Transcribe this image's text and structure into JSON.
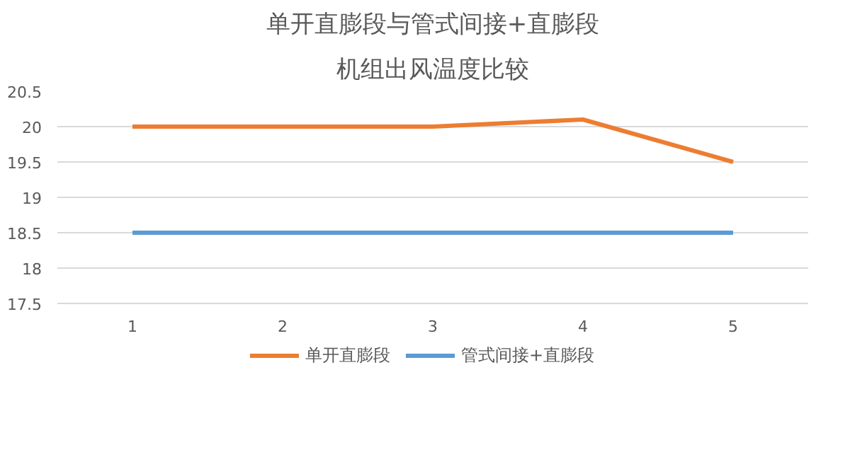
{
  "chart_data": {
    "type": "line",
    "title": "单开直膨段与管式间接+直膨段",
    "subtitle": "机组出风温度比较",
    "categories": [
      "1",
      "2",
      "3",
      "4",
      "5"
    ],
    "series": [
      {
        "name": "单开直膨段",
        "color": "#ed7d31",
        "values": [
          20,
          20,
          20,
          20.1,
          19.5
        ]
      },
      {
        "name": "管式间接+直膨段",
        "color": "#5b9bd5",
        "values": [
          18.5,
          18.5,
          18.5,
          18.5,
          18.5
        ]
      }
    ],
    "ylim": [
      17.5,
      20.5
    ],
    "yticks": [
      17.5,
      18,
      18.5,
      19,
      19.5,
      20,
      20.5
    ],
    "grid": "y",
    "legend": "bottom",
    "marker": "none",
    "line_style": "solid"
  }
}
